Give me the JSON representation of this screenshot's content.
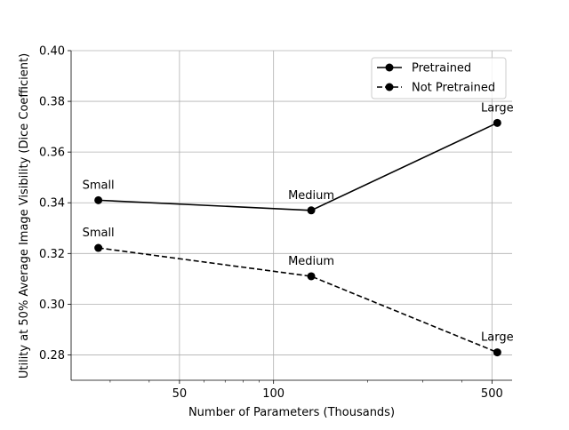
{
  "chart_data": {
    "type": "line",
    "xlabel": "Number of Parameters (Thousands)",
    "ylabel": "Utility at 50% Average Image Visibility (Dice Coefficient)",
    "x_scale": "log",
    "xlim": [
      22.5,
      580
    ],
    "ylim": [
      0.27,
      0.4
    ],
    "x_ticks": [
      50,
      100,
      500
    ],
    "x_minor_ticks": [
      30,
      40,
      60,
      70,
      80,
      90,
      200,
      300,
      400
    ],
    "y_ticks": [
      0.28,
      0.3,
      0.32,
      0.34,
      0.36,
      0.38,
      0.4
    ],
    "y_tick_labels": [
      "0.28",
      "0.30",
      "0.32",
      "0.34",
      "0.36",
      "0.38",
      "0.40"
    ],
    "grid": true,
    "legend_position": "top-right",
    "series": [
      {
        "name": "Pretrained",
        "line_style": "solid",
        "color": "#000000",
        "points": [
          {
            "x": 27.5,
            "y": 0.341,
            "label": "Small"
          },
          {
            "x": 132,
            "y": 0.337,
            "label": "Medium"
          },
          {
            "x": 520,
            "y": 0.3715,
            "label": "Large"
          }
        ]
      },
      {
        "name": "Not Pretrained",
        "line_style": "dashed",
        "color": "#000000",
        "points": [
          {
            "x": 27.5,
            "y": 0.3222,
            "label": "Small"
          },
          {
            "x": 132,
            "y": 0.311,
            "label": "Medium"
          },
          {
            "x": 520,
            "y": 0.281,
            "label": "Large"
          }
        ]
      }
    ]
  }
}
